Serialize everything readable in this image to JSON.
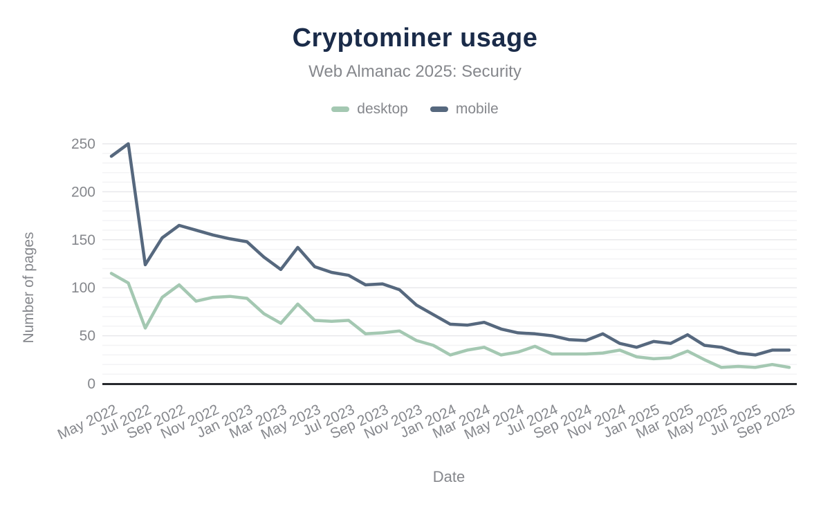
{
  "title": "Cryptominer usage",
  "subtitle": "Web Almanac 2025: Security",
  "colors": {
    "title": "#1a2b49",
    "muted_text": "#85878c",
    "axis_line": "#26282c",
    "grid_minor": "#f3f3f5",
    "grid_major": "#e8e8eb",
    "background": "#ffffff",
    "desktop": "#a4c8b2",
    "mobile": "#56687e"
  },
  "chart_data": {
    "type": "line",
    "title": "Cryptominer usage",
    "subtitle": "Web Almanac 2025: Security",
    "xlabel": "Date",
    "ylabel": "Number of pages",
    "ylim": [
      0,
      250
    ],
    "y_major_ticks": [
      0,
      50,
      100,
      150,
      200,
      250
    ],
    "y_minor_grid_interval": 10,
    "grid": "horizontal",
    "legend_position": "top-center",
    "x_tick_every": 2,
    "x": [
      "May 2022",
      "Jun 2022",
      "Jul 2022",
      "Aug 2022",
      "Sep 2022",
      "Oct 2022",
      "Nov 2022",
      "Dec 2022",
      "Jan 2023",
      "Feb 2023",
      "Mar 2023",
      "Apr 2023",
      "May 2023",
      "Jun 2023",
      "Jul 2023",
      "Aug 2023",
      "Sep 2023",
      "Oct 2023",
      "Nov 2023",
      "Dec 2023",
      "Jan 2024",
      "Feb 2024",
      "Mar 2024",
      "Apr 2024",
      "May 2024",
      "Jun 2024",
      "Jul 2024",
      "Aug 2024",
      "Sep 2024",
      "Oct 2024",
      "Nov 2024",
      "Dec 2024",
      "Jan 2025",
      "Feb 2025",
      "Mar 2025",
      "Apr 2025",
      "May 2025",
      "Jun 2025",
      "Jul 2025",
      "Aug 2025",
      "Sep 2025"
    ],
    "series": [
      {
        "name": "desktop",
        "color": "#a4c8b2",
        "values": [
          115,
          105,
          58,
          90,
          103,
          86,
          90,
          91,
          89,
          73,
          63,
          83,
          66,
          65,
          66,
          52,
          53,
          55,
          45,
          40,
          30,
          35,
          38,
          30,
          33,
          39,
          31,
          31,
          31,
          32,
          35,
          28,
          26,
          27,
          34,
          25,
          17,
          18,
          17,
          20,
          17
        ]
      },
      {
        "name": "mobile",
        "color": "#56687e",
        "values": [
          237,
          250,
          124,
          152,
          165,
          160,
          155,
          151,
          148,
          132,
          119,
          142,
          122,
          116,
          113,
          103,
          104,
          98,
          82,
          72,
          62,
          61,
          64,
          57,
          53,
          52,
          50,
          46,
          45,
          52,
          42,
          38,
          44,
          42,
          51,
          40,
          38,
          32,
          30,
          35,
          35
        ]
      }
    ]
  }
}
